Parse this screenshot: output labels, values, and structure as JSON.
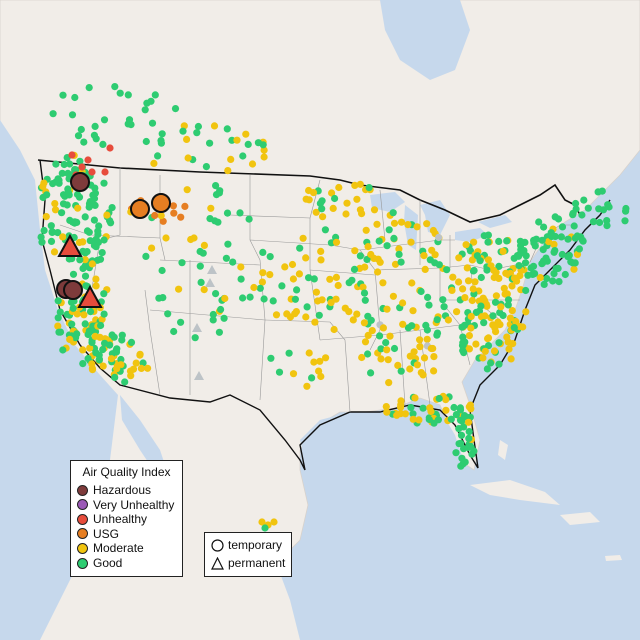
{
  "legend": {
    "title": "Air Quality Index",
    "items": [
      {
        "label": "Hazardous",
        "color": "#7e3b3b"
      },
      {
        "label": "Very Unhealthy",
        "color": "#9b59b6"
      },
      {
        "label": "Unhealthy",
        "color": "#e74c3c"
      },
      {
        "label": "USG",
        "color": "#e67e22"
      },
      {
        "label": "Moderate",
        "color": "#f1c40f"
      },
      {
        "label": "Good",
        "color": "#2ecc71"
      }
    ]
  },
  "type_legend": {
    "items": [
      {
        "label": "temporary",
        "shape": "circle"
      },
      {
        "label": "permanent",
        "shape": "triangle"
      }
    ]
  },
  "colors": {
    "water": "#c6d8ec",
    "land": "#f1ede8",
    "no_data": "#bdc3c7"
  }
}
